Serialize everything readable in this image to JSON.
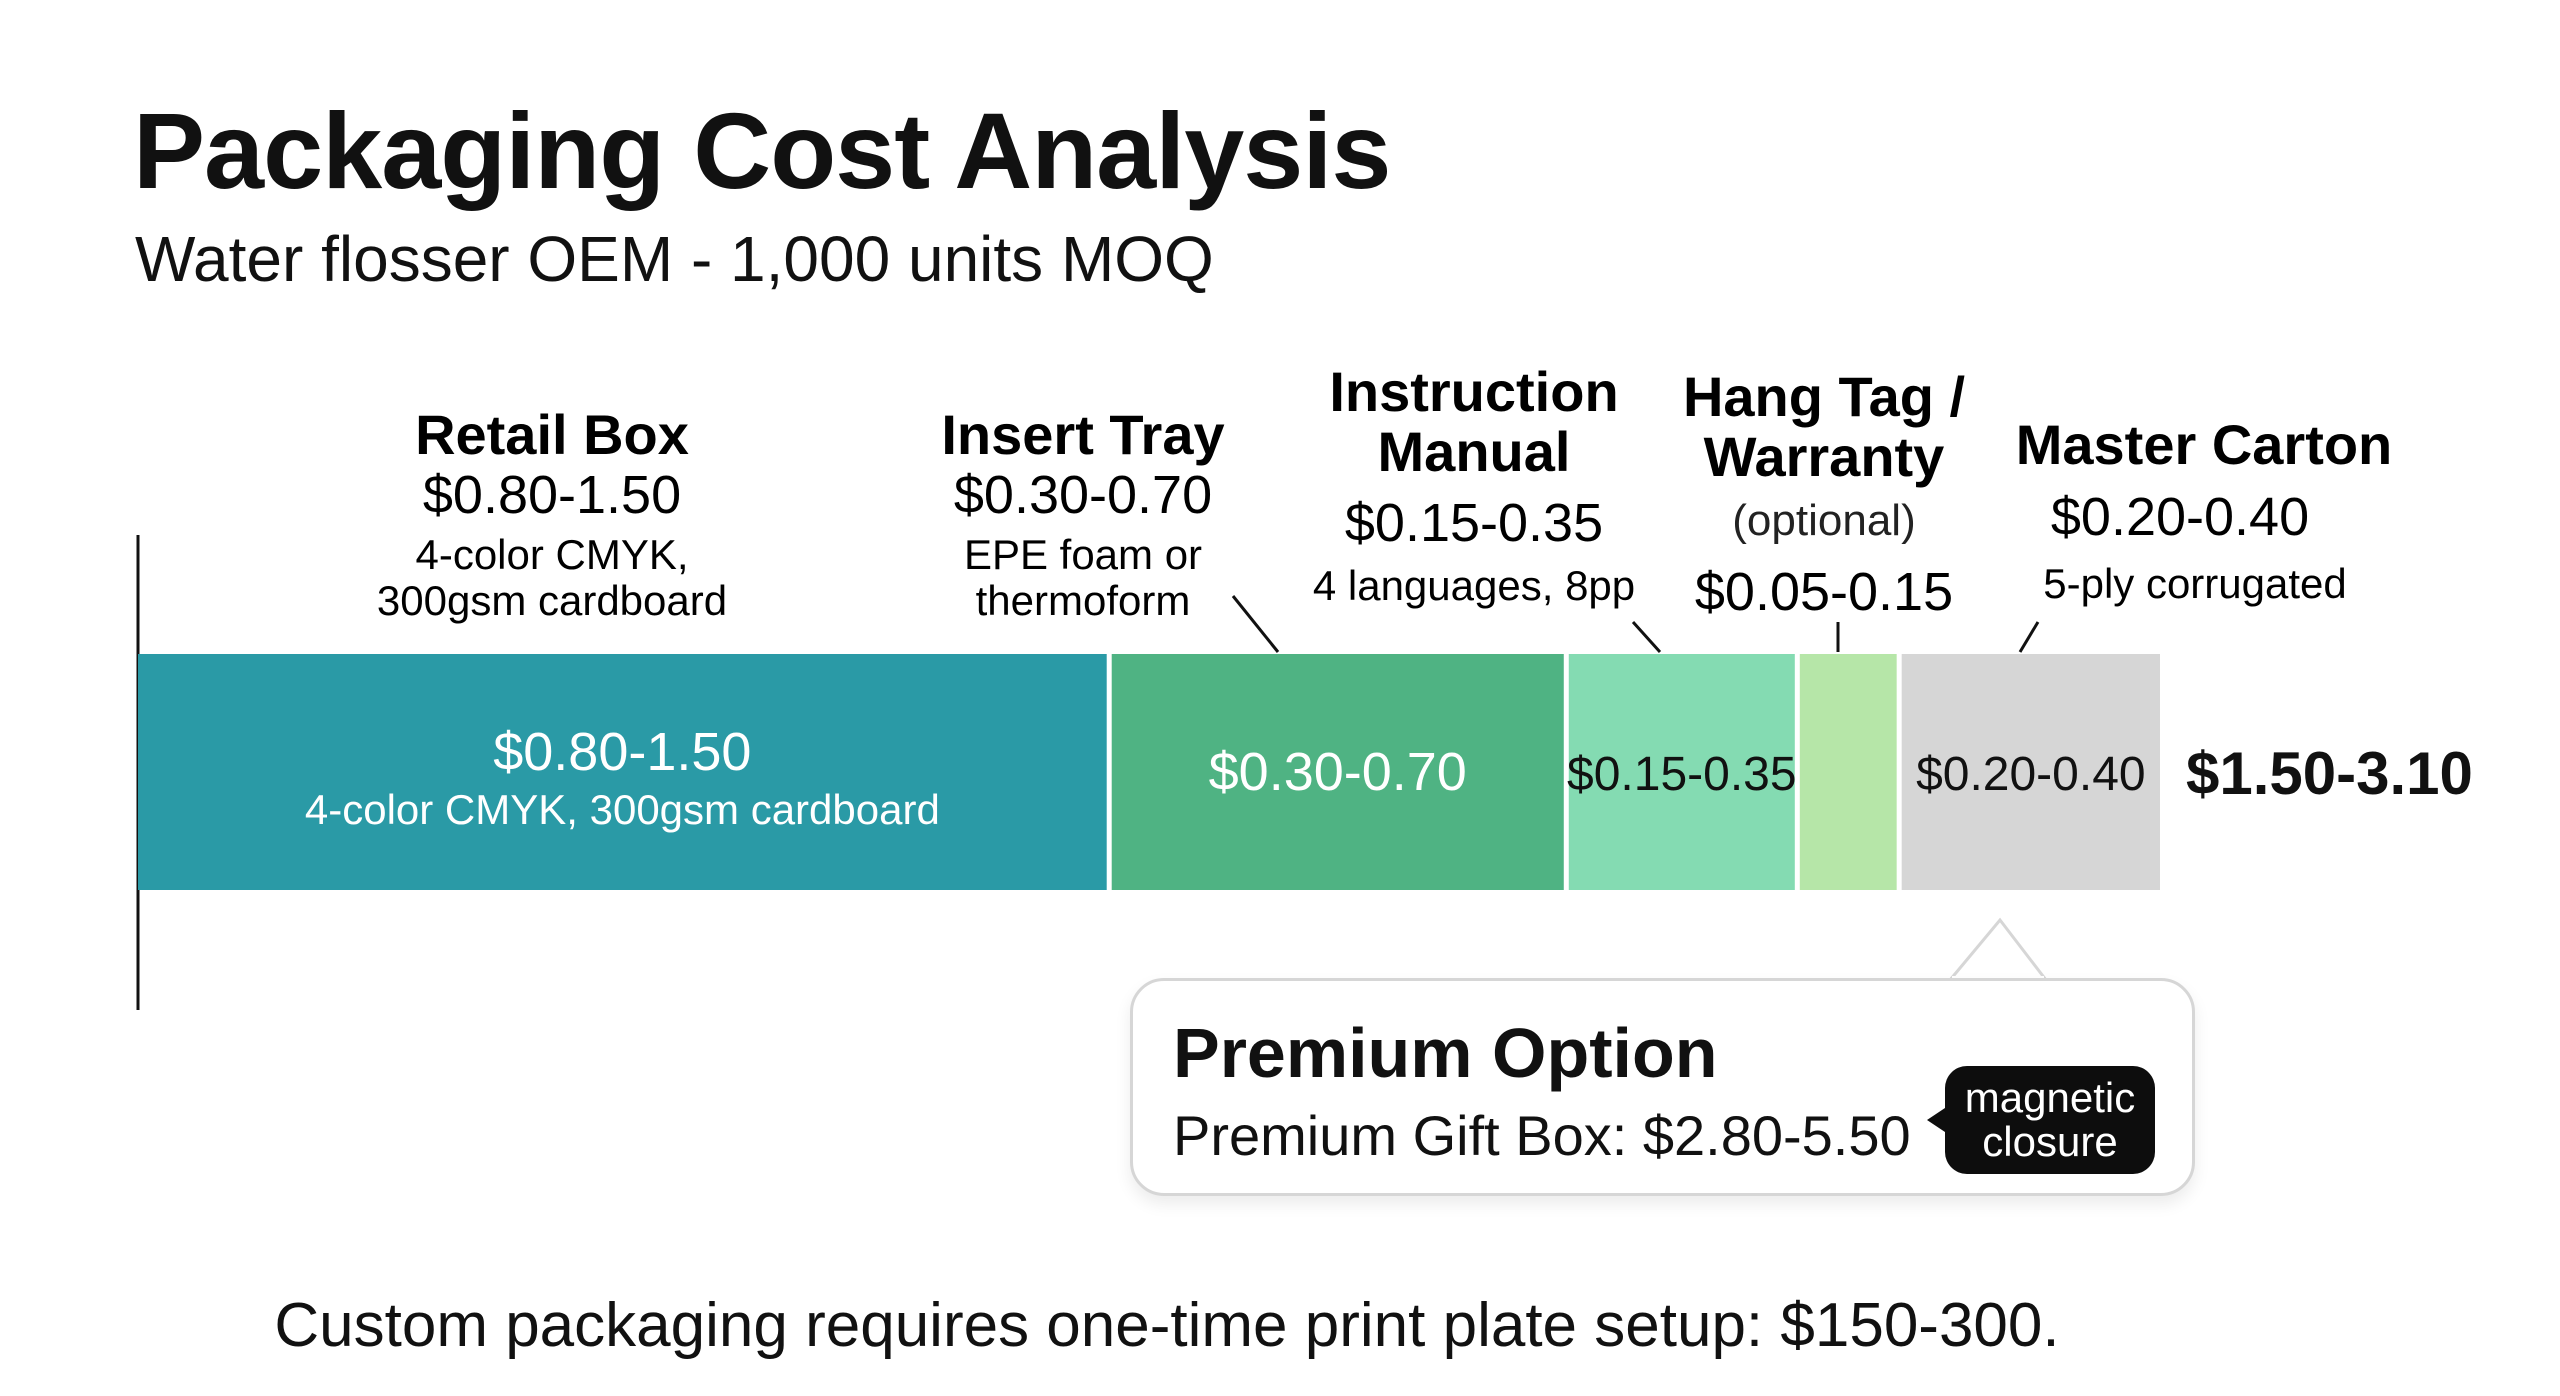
{
  "title": "Packaging Cost Analysis",
  "subtitle": "Water flosser OEM - 1,000 units MOQ",
  "chart_data": {
    "type": "bar",
    "orientation": "horizontal-stacked",
    "unit": "USD per unit",
    "segments": [
      {
        "name": "Retail Box",
        "range_label": "$0.80-1.50",
        "low": 0.8,
        "high": 1.5,
        "note_lines": [
          "4-color CMYK,",
          "300gsm cardboard"
        ],
        "inner_note": "4-color CMYK, 300gsm cardboard",
        "optional_label": "",
        "color": "#2a9aa6"
      },
      {
        "name": "Insert Tray",
        "range_label": "$0.30-0.70",
        "low": 0.3,
        "high": 0.7,
        "note_lines": [
          "EPE foam or",
          "thermoform"
        ],
        "inner_note": "",
        "optional_label": "",
        "color": "#4fb383"
      },
      {
        "name": "Instruction Manual",
        "range_label": "$0.15-0.35",
        "low": 0.15,
        "high": 0.35,
        "note_lines": [
          "4 languages, 8pp"
        ],
        "inner_note": "",
        "optional_label": "",
        "color": "#84dbb2"
      },
      {
        "name": "Hang Tag / Warranty",
        "range_label": "$0.05-0.15",
        "low": 0.05,
        "high": 0.15,
        "note_lines": [],
        "inner_note": "",
        "optional_label": "(optional)",
        "color": "#b6e6a8"
      },
      {
        "name": "Master Carton",
        "range_label": "$0.20-0.40",
        "low": 0.2,
        "high": 0.4,
        "note_lines": [
          "5-ply corrugated"
        ],
        "inner_note": "",
        "optional_label": "",
        "color": "#d6d6d6"
      }
    ],
    "total_label": "$1.50-3.10",
    "total_low": 1.5,
    "total_high": 3.1
  },
  "callout": {
    "title": "Premium Option",
    "text": "Premium Gift Box: $2.80-5.50",
    "badge": "magnetic closure"
  },
  "footnote": "Custom packaging requires one-time print plate setup: $150-300."
}
